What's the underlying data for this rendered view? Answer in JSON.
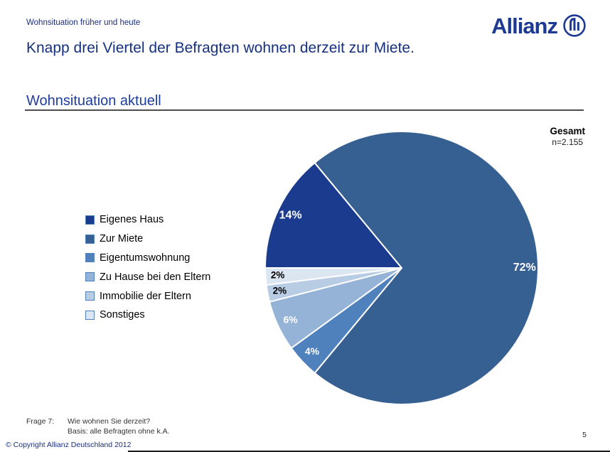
{
  "header": {
    "eyebrow": "Wohnsituation früher und heute",
    "title": "Knapp drei Viertel der Befragten wohnen derzeit zur Miete.",
    "brand": "Allianz",
    "brand_color": "#1D3A93"
  },
  "section": {
    "title": "Wohnsituation aktuell"
  },
  "chart_data": {
    "type": "pie",
    "title": "Wohnsituation aktuell",
    "group_label": "Gesamt",
    "n_label": "n=2.155",
    "categories": [
      "Eigenes Haus",
      "Zur Miete",
      "Eigentumswohnung",
      "Zu Hause bei den Eltern",
      "Immobilie der Eltern",
      "Sonstiges"
    ],
    "values": [
      14,
      72,
      4,
      6,
      2,
      2
    ],
    "labels": [
      "14%",
      "72%",
      "4%",
      "6%",
      "2%",
      "2%"
    ],
    "colors": [
      "#1B3B8E",
      "#376092",
      "#4F81BD",
      "#95B3D7",
      "#B8CCE4",
      "#DCE6F1"
    ],
    "label_colors": [
      "#FFFFFF",
      "#FFFFFF",
      "#FFFFFF",
      "#FFFFFF",
      "#000000",
      "#000000"
    ],
    "start_angle_deg": 270,
    "direction": "clockwise",
    "legend_position": "left",
    "slice_border_color": "#FFFFFF"
  },
  "footer": {
    "question_label": "Frage 7:",
    "question": "Wie wohnen Sie derzeit?",
    "basis": "Basis: alle Befragten ohne k.A.",
    "copyright": "© Copyright Allianz Deutschland 2012",
    "page_number": "5"
  }
}
